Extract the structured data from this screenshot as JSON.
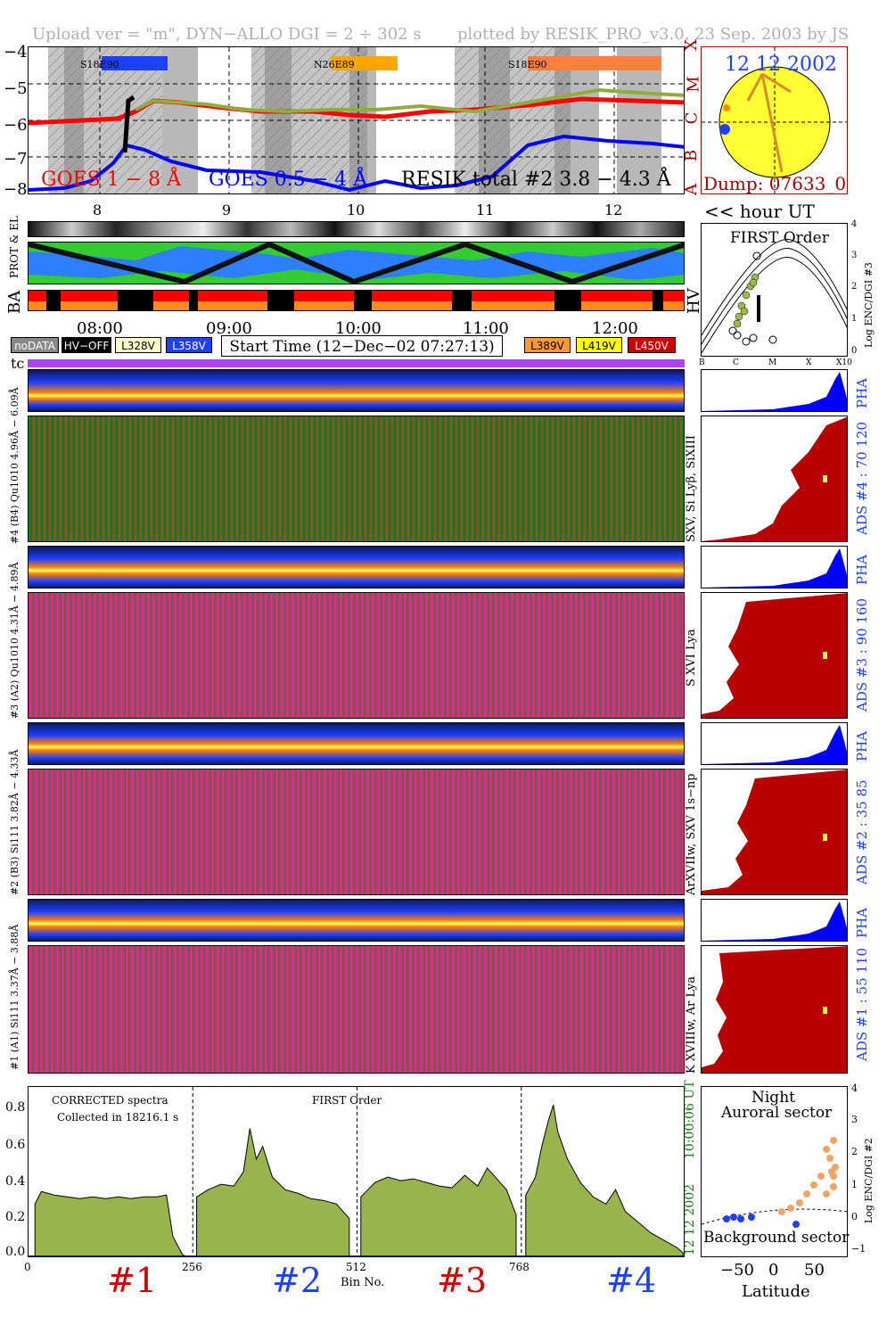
{
  "header": {
    "left": "Upload ver = \"m\", DYN−ALLO DGI =   2 ÷ 302 s",
    "right": "plotted by RESIK_PRO_v3.0, 23 Sep. 2003 by JS"
  },
  "goes": {
    "legend_red": "GOES 1 − 8 Å",
    "legend_blue": "GOES 0.5 − 4 Å",
    "legend_black": "RESIK total #2  3.8 − 4.3 Å",
    "yticks": [
      "−4",
      "−5",
      "−6",
      "−7",
      "−8"
    ],
    "class_labels": [
      "X",
      "M",
      "C",
      "B",
      "A"
    ],
    "regions": [
      {
        "label": "S18E90",
        "color": "#1f3fff"
      },
      {
        "label": "N26E89",
        "color": "#ffa500"
      },
      {
        "label": "S18E90",
        "color": "#ff7f3f"
      }
    ],
    "hour_ticks": [
      "8",
      "9",
      "10",
      "11",
      "12"
    ],
    "hour_ut_label": "<< hour UT"
  },
  "sun": {
    "date": "12 12 2002",
    "dump": "Dump: 07633_0"
  },
  "first_order": {
    "title": "FIRST Order",
    "ylabel": "Log ENC/DGI #3",
    "yticks": [
      "4",
      "3",
      "2",
      "1",
      "0"
    ],
    "xticks": [
      "B",
      "C",
      "M",
      "X",
      "X10"
    ]
  },
  "side_labels": {
    "prot_el": "PROT & EL",
    "ba": "BA",
    "hv": "HV",
    "tc": "tc"
  },
  "time_axis": {
    "ticks": [
      "08:00",
      "09:00",
      "10:00",
      "11:00",
      "12:00"
    ]
  },
  "legend": {
    "nodata": "noDATA",
    "hvoff": "HV−OFF",
    "l328": "L328V",
    "l358": "L358V",
    "start_time": "Start Time (12−Dec−02 07:27:13)",
    "l389": "L389V",
    "l419": "L419V",
    "l450": "L450V"
  },
  "channels": [
    {
      "pha_label": "#4 (B4) Qu1010 4.96Å − 6.09Å",
      "ion_label": "SXV, Si Lyβ, SiXIII",
      "ads": "ADS #4 :  70 120",
      "pha": "PHA"
    },
    {
      "pha_label": "#3 (A2) Qu1010 4.31Å − 4.89Å",
      "ion_label": "S XVI Lya",
      "ads": "ADS #3 :  90 160",
      "pha": "PHA"
    },
    {
      "pha_label": "#2 (B3) Si111 3.82Å − 4.33Å",
      "ion_label": "ArXVIIw, SXV 1s−np",
      "ads": "ADS #2 :  35 85",
      "pha": "PHA"
    },
    {
      "pha_label": "#1 (A1) Si111 3.37Å − 3.88Å",
      "ion_label": "K XVIIIw, Ar Lya",
      "ads": "ADS #1 :  55 110",
      "pha": "PHA"
    }
  ],
  "spectrum": {
    "corrected": "CORRECTED spectra",
    "collected": "Collected in 18216.1 s",
    "first_order": "FIRST Order",
    "time_stamp": "10:00:06 UT",
    "date_stamp": "12 12 2002",
    "yticks": [
      "0.8",
      "0.6",
      "0.4",
      "0.2",
      "0.0"
    ],
    "xticks": [
      "0",
      "256",
      "512",
      "768"
    ],
    "xlabel": "Bin No.",
    "channel_labels": [
      "#1",
      "#2",
      "#3",
      "#4"
    ]
  },
  "latitude": {
    "night": "Night",
    "auroral": "Auroral sector",
    "background": "Background sector",
    "xlabel": "Latitude",
    "ylabel": "Log ENC/DGI #2",
    "xticks": [
      "−50",
      "0",
      "50"
    ],
    "yticks": [
      "4",
      "3",
      "2",
      "1",
      "0",
      "−1"
    ]
  },
  "chart_data": {
    "type": "area",
    "xlabel": "Bin No.",
    "xlim": [
      0,
      1024
    ],
    "ylim": [
      0,
      0.95
    ],
    "grid": false,
    "series": [
      {
        "x": [
          10,
          20,
          40,
          60,
          80,
          100,
          120,
          140,
          160,
          180,
          200,
          215,
          225,
          240,
          250
        ],
        "values": [
          0.3,
          0.37,
          0.35,
          0.34,
          0.33,
          0.34,
          0.33,
          0.34,
          0.33,
          0.34,
          0.34,
          0.35,
          0.12,
          0.02,
          0.0
        ]
      },
      {
        "x": [
          262,
          280,
          300,
          320,
          335,
          345,
          355,
          365,
          380,
          400,
          420,
          440,
          460,
          480,
          500
        ],
        "values": [
          0.34,
          0.38,
          0.41,
          0.4,
          0.48,
          0.72,
          0.55,
          0.62,
          0.45,
          0.38,
          0.36,
          0.33,
          0.32,
          0.3,
          0.22
        ]
      },
      {
        "x": [
          518,
          540,
          560,
          580,
          600,
          620,
          640,
          660,
          680,
          700,
          715,
          730,
          745,
          760
        ],
        "values": [
          0.34,
          0.42,
          0.45,
          0.43,
          0.44,
          0.42,
          0.4,
          0.39,
          0.46,
          0.4,
          0.5,
          0.44,
          0.38,
          0.24
        ]
      },
      {
        "x": [
          775,
          790,
          800,
          810,
          818,
          825,
          840,
          860,
          880,
          900,
          915,
          930,
          950,
          970,
          990,
          1010,
          1020
        ],
        "values": [
          0.35,
          0.45,
          0.62,
          0.76,
          0.85,
          0.7,
          0.55,
          0.42,
          0.34,
          0.3,
          0.38,
          0.26,
          0.2,
          0.14,
          0.1,
          0.06,
          0.03
        ]
      }
    ]
  },
  "colors": {
    "red": "#ff0000",
    "blue": "#0000ff",
    "green_fill": "#99b34d",
    "dark_red": "#b80000",
    "olive": "#9aba4a",
    "orange": "#f4a460",
    "yellow": "#ffff33"
  }
}
